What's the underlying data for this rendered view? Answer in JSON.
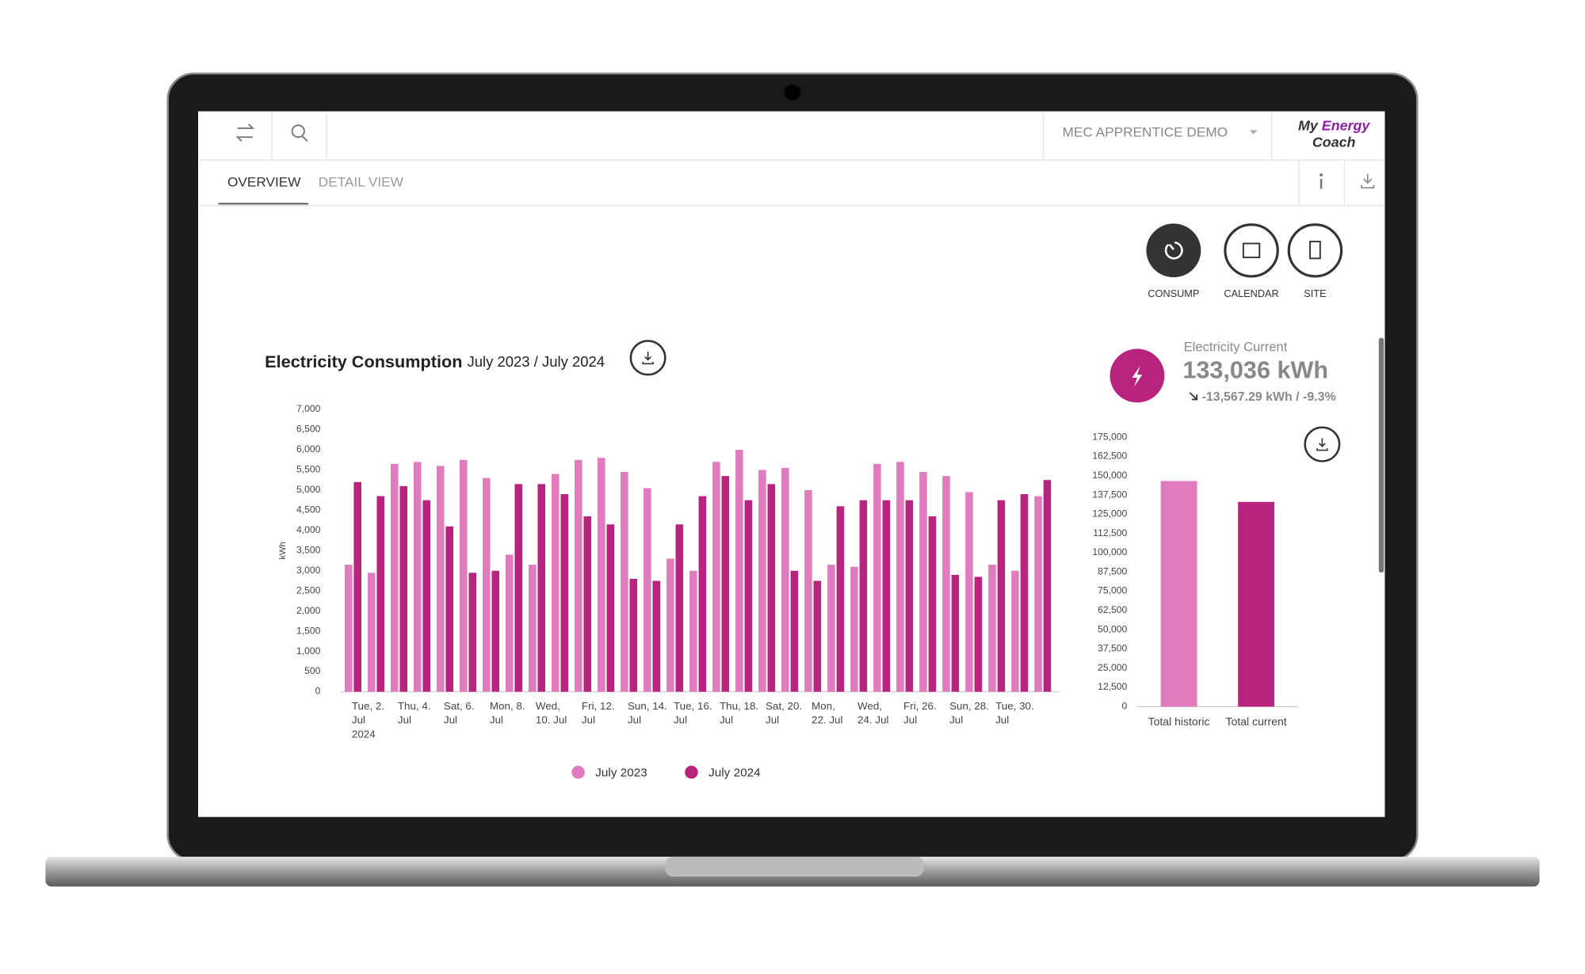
{
  "header": {
    "account": "MEC APPRENTICE DEMO",
    "logo": [
      "My",
      "Energy",
      "Coach"
    ]
  },
  "tabs": [
    "OVERVIEW",
    "DETAIL VIEW"
  ],
  "view_buttons": [
    "CONSUMP",
    "CALENDAR",
    "SITE"
  ],
  "kpi": {
    "label": "Electricity Current",
    "value": "133,036 kWh",
    "change": "-13,567.29 kWh / -9.3%"
  },
  "chart_data": [
    {
      "type": "bar",
      "title": "Electricity Consumption",
      "subtitle": "July 2023 / July 2024",
      "ylabel": "kWh",
      "categories": [
        "Tue, 2.\nJul\n2024",
        null,
        "Thu, 4.\nJul",
        null,
        "Sat, 6.\nJul",
        null,
        "Mon, 8.\nJul",
        null,
        "Wed,\n10. Jul",
        null,
        "Fri, 12.\nJul",
        null,
        "Sun, 14.\nJul",
        null,
        "Tue, 16.\nJul",
        null,
        "Thu, 18.\nJul",
        null,
        "Sat, 20.\nJul",
        null,
        "Mon,\n22. Jul",
        null,
        "Wed,\n24. Jul",
        null,
        "Fri, 26.\nJul",
        null,
        "Sun, 28.\nJul",
        null,
        "Tue, 30.\nJul",
        null,
        null
      ],
      "series": [
        {
          "name": "July 2023",
          "color": "#e07bbd",
          "values": [
            3150,
            2950,
            5650,
            5700,
            5600,
            5750,
            5300,
            3400,
            3150,
            5400,
            5750,
            5800,
            5450,
            5050,
            3300,
            3000,
            5700,
            6000,
            5500,
            5550,
            5000,
            3150,
            3100,
            5650,
            5700,
            5450,
            5350,
            4950,
            3150,
            3000,
            4850
          ]
        },
        {
          "name": "July 2024",
          "color": "#b8237e",
          "values": [
            5200,
            4850,
            5100,
            4750,
            4100,
            2950,
            3000,
            5150,
            5150,
            4900,
            4350,
            4150,
            2800,
            2750,
            4150,
            4850,
            5350,
            4750,
            5150,
            3000,
            2750,
            4600,
            4750,
            4750,
            4750,
            4350,
            2900,
            2850,
            4750,
            4900,
            5250
          ]
        }
      ],
      "ylim": [
        0,
        7000
      ],
      "yticks": [
        0,
        500,
        {
          "value": 1000,
          "label": "1,000"
        },
        {
          "value": 1500,
          "label": "1,500"
        },
        {
          "value": 2000,
          "label": "2,000"
        },
        {
          "value": 2500,
          "label": "2,500"
        },
        {
          "value": 3000,
          "label": "3,000"
        },
        {
          "value": 3500,
          "label": "3,500"
        },
        {
          "value": 4000,
          "label": "4,000"
        },
        {
          "value": 4500,
          "label": "4,500"
        },
        {
          "value": 5000,
          "label": "5,000"
        },
        {
          "value": 5500,
          "label": "5,500"
        },
        {
          "value": 6000,
          "label": "6,000"
        },
        {
          "value": 6500,
          "label": "6,500"
        },
        {
          "value": 7000,
          "label": "7,000"
        }
      ],
      "legend": "bottom"
    },
    {
      "type": "bar",
      "categories": [
        "Total historic",
        "Total current"
      ],
      "values": [
        146603.29,
        133036
      ],
      "colors": [
        "#e07bbd",
        "#b8237e"
      ],
      "ylim": [
        0,
        175000
      ],
      "yticks": [
        0,
        {
          "value": 12500,
          "label": "12,500"
        },
        {
          "value": 25000,
          "label": "25,000"
        },
        {
          "value": 37500,
          "label": "37,500"
        },
        {
          "value": 50000,
          "label": "50,000"
        },
        {
          "value": 62500,
          "label": "62,500"
        },
        {
          "value": 75000,
          "label": "75,000"
        },
        {
          "value": 87500,
          "label": "87,500"
        },
        {
          "value": 100000,
          "label": "100,000"
        },
        {
          "value": 112500,
          "label": "112,500"
        },
        {
          "value": 125000,
          "label": "125,000"
        },
        {
          "value": 137500,
          "label": "137,500"
        },
        {
          "value": 150000,
          "label": "150,000"
        },
        {
          "value": 162500,
          "label": "162,500"
        },
        {
          "value": 175000,
          "label": "175,000"
        }
      ]
    }
  ]
}
